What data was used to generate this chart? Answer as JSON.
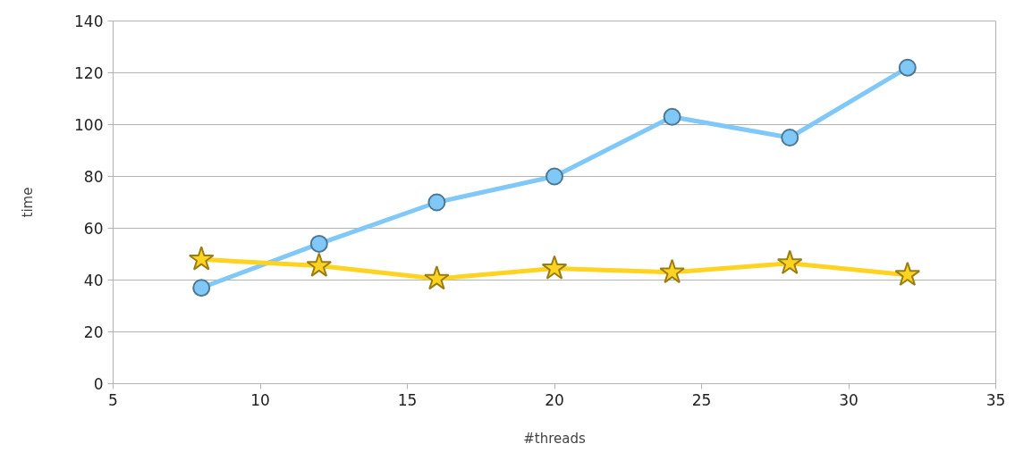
{
  "chart_data": {
    "type": "line",
    "xlabel": "#threads",
    "ylabel": "time",
    "xlim": [
      5,
      35
    ],
    "xticks": [
      5,
      10,
      15,
      20,
      25,
      30,
      35
    ],
    "ylim": [
      0,
      140
    ],
    "yticks": [
      0,
      20,
      40,
      60,
      80,
      100,
      120,
      140
    ],
    "grid": "y",
    "x": [
      8,
      12,
      16,
      20,
      24,
      28,
      32
    ],
    "series": [
      {
        "color": "#80c8f8",
        "marker": "circle",
        "values": [
          37,
          54,
          70,
          80,
          103,
          95,
          122
        ]
      },
      {
        "color": "#ffd320",
        "marker": "star",
        "values": [
          48,
          45.5,
          40.5,
          44.5,
          43,
          46.5,
          42
        ]
      }
    ]
  }
}
